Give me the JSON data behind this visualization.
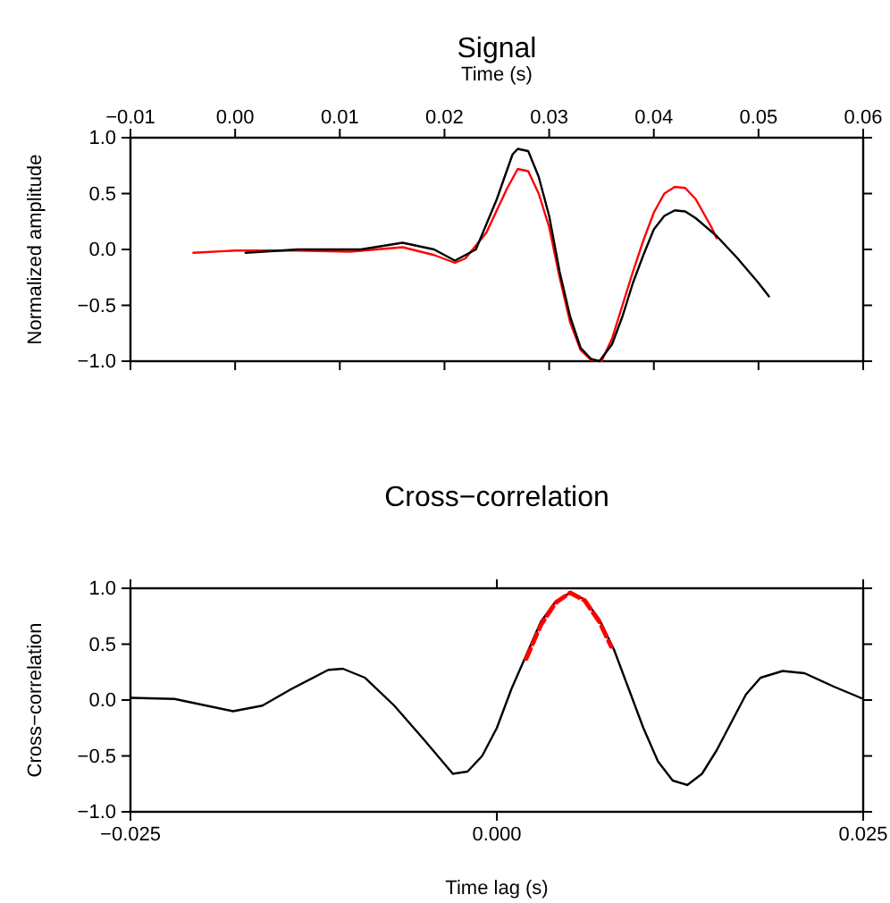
{
  "chart_data": [
    {
      "type": "line",
      "title": "Signal",
      "xlabel": "Time (s)",
      "ylabel": "Normalized amplitude",
      "xlim": [
        -0.01,
        0.06
      ],
      "xticks": [
        {
          "value": -0.01,
          "label": "−0.01"
        },
        {
          "value": 0,
          "label": "0.00"
        },
        {
          "value": 0.01,
          "label": "0.01"
        },
        {
          "value": 0.02,
          "label": "0.02"
        },
        {
          "value": 0.03,
          "label": "0.03"
        },
        {
          "value": 0.04,
          "label": "0.04"
        },
        {
          "value": 0.05,
          "label": "0.05"
        },
        {
          "value": 0.06,
          "label": "0.06"
        }
      ],
      "ylim": [
        -1,
        1
      ],
      "yticks": [
        {
          "value": -1,
          "label": "−1.0"
        },
        {
          "value": -0.5,
          "label": "−0.5"
        },
        {
          "value": 0,
          "label": "0.0"
        },
        {
          "value": 0.5,
          "label": "0.5"
        },
        {
          "value": 1,
          "label": "1.0"
        }
      ],
      "series": [
        {
          "color": "#ff0000",
          "x": [
            -0.004,
            0.0,
            0.006,
            0.011,
            0.016,
            0.019,
            0.021,
            0.022,
            0.024,
            0.026,
            0.027,
            0.028,
            0.029,
            0.03,
            0.031,
            0.032,
            0.033,
            0.034,
            0.035,
            0.036,
            0.037,
            0.038,
            0.039,
            0.04,
            0.041,
            0.042,
            0.043,
            0.044,
            0.0455,
            0.046
          ],
          "values": [
            -0.03,
            -0.01,
            -0.01,
            -0.02,
            0.02,
            -0.05,
            -0.12,
            -0.08,
            0.15,
            0.55,
            0.72,
            0.7,
            0.5,
            0.2,
            -0.25,
            -0.65,
            -0.9,
            -0.99,
            -1.0,
            -0.8,
            -0.5,
            -0.2,
            0.08,
            0.33,
            0.5,
            0.56,
            0.55,
            0.45,
            0.2,
            0.1
          ]
        },
        {
          "color": "#000000",
          "x": [
            0.001,
            0.006,
            0.012,
            0.016,
            0.019,
            0.021,
            0.023,
            0.025,
            0.0265,
            0.027,
            0.028,
            0.029,
            0.03,
            0.031,
            0.032,
            0.033,
            0.034,
            0.0348,
            0.036,
            0.037,
            0.038,
            0.039,
            0.04,
            0.041,
            0.042,
            0.043,
            0.044,
            0.046,
            0.048,
            0.05,
            0.051
          ],
          "values": [
            -0.03,
            0.0,
            0.0,
            0.06,
            0.0,
            -0.1,
            0.0,
            0.45,
            0.85,
            0.9,
            0.88,
            0.65,
            0.3,
            -0.2,
            -0.6,
            -0.88,
            -0.98,
            -1.0,
            -0.85,
            -0.6,
            -0.3,
            -0.05,
            0.18,
            0.3,
            0.35,
            0.34,
            0.28,
            0.12,
            -0.08,
            -0.3,
            -0.42
          ]
        }
      ]
    },
    {
      "type": "line",
      "title": "Cross−correlation",
      "xlabel": "Time lag (s)",
      "ylabel": "Cross−correlation",
      "xlim": [
        -0.025,
        0.025
      ],
      "xticks": [
        {
          "value": -0.025,
          "label": "−0.025"
        },
        {
          "value": 0,
          "label": "0.000"
        },
        {
          "value": 0.025,
          "label": "0.025"
        }
      ],
      "ylim": [
        -1,
        1
      ],
      "yticks": [
        {
          "value": -1,
          "label": "−1.0"
        },
        {
          "value": -0.5,
          "label": "−0.5"
        },
        {
          "value": 0,
          "label": "0.0"
        },
        {
          "value": 0.5,
          "label": "0.5"
        },
        {
          "value": 1,
          "label": "1.0"
        }
      ],
      "series": [
        {
          "color": "#000000",
          "x": [
            -0.025,
            -0.022,
            -0.018,
            -0.016,
            -0.014,
            -0.0115,
            -0.0105,
            -0.009,
            -0.007,
            -0.005,
            -0.003,
            -0.002,
            -0.001,
            0.0,
            0.001,
            0.002,
            0.003,
            0.004,
            0.005,
            0.006,
            0.007,
            0.008,
            0.009,
            0.01,
            0.011,
            0.012,
            0.013,
            0.014,
            0.015,
            0.016,
            0.017,
            0.018,
            0.0195,
            0.021,
            0.023,
            0.025
          ],
          "values": [
            0.02,
            0.01,
            -0.1,
            -0.05,
            0.1,
            0.27,
            0.28,
            0.2,
            -0.05,
            -0.35,
            -0.66,
            -0.64,
            -0.5,
            -0.25,
            0.1,
            0.4,
            0.7,
            0.88,
            0.96,
            0.9,
            0.72,
            0.45,
            0.1,
            -0.25,
            -0.55,
            -0.72,
            -0.76,
            -0.66,
            -0.45,
            -0.2,
            0.05,
            0.2,
            0.26,
            0.24,
            0.12,
            0.01
          ]
        },
        {
          "color": "#ff0000",
          "line_style": "dashed",
          "x": [
            0.002,
            0.003,
            0.004,
            0.005,
            0.006,
            0.007,
            0.0078
          ],
          "values": [
            0.37,
            0.67,
            0.87,
            0.96,
            0.89,
            0.7,
            0.48
          ]
        }
      ]
    }
  ]
}
